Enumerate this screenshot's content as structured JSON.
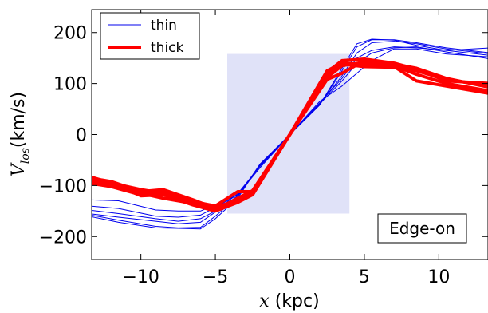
{
  "chart_data": {
    "type": "line",
    "xlabel_math": "x",
    "xlabel_unit": "(kpc)",
    "ylabel_math": "V",
    "ylabel_sub": "los",
    "ylabel_unit": "(km/s)",
    "xlim": [
      -13.3,
      13.3
    ],
    "ylim": [
      -245,
      245
    ],
    "x_ticks": [
      -10,
      -5,
      0,
      5,
      10
    ],
    "x_tick_labels": [
      "−10",
      "−5",
      "0",
      "5",
      "10"
    ],
    "y_ticks": [
      -200,
      -100,
      0,
      100,
      200
    ],
    "y_tick_labels": [
      "−200",
      "−100",
      "0",
      "100",
      "200"
    ],
    "shaded_region": {
      "x": [
        -4.2,
        4.0
      ],
      "y": [
        -155,
        158
      ],
      "color": "#e0e2f8"
    },
    "legend": {
      "placement": "top-left",
      "entries": [
        {
          "label": "thin",
          "color": "#0000ee"
        },
        {
          "label": "thick",
          "color": "#ff0000"
        }
      ]
    },
    "annotation": "Edge-on",
    "series": [
      {
        "name": "thin",
        "color": "#0000ee",
        "x": [
          -13.5,
          -11.5,
          -9,
          -7.5,
          -6,
          -5,
          -3.5,
          -2,
          0,
          2,
          3.5,
          4.5,
          5.5,
          7,
          8.5,
          10.5,
          13.5
        ],
        "y": [
          -128,
          -130,
          -148,
          -150,
          -150,
          -138,
          -118,
          -65,
          0,
          65,
          95,
          120,
          145,
          168,
          168,
          158,
          152
        ]
      },
      {
        "name": "thin",
        "color": "#0000ee",
        "x": [
          -13.5,
          -11.5,
          -9,
          -7.5,
          -6,
          -5,
          -3.5,
          -2,
          0,
          2,
          3.5,
          4.5,
          5.5,
          7,
          8.5,
          10.5,
          13.5
        ],
        "y": [
          -140,
          -145,
          -160,
          -162,
          -158,
          -143,
          -118,
          -62,
          0,
          62,
          110,
          150,
          165,
          172,
          170,
          165,
          155
        ]
      },
      {
        "name": "thin",
        "color": "#0000ee",
        "x": [
          -13.5,
          -11.5,
          -9,
          -7.5,
          -6,
          -5,
          -3.5,
          -2,
          0,
          2,
          3.5,
          4.5,
          5.5,
          7,
          8.5,
          10.5,
          13.5
        ],
        "y": [
          -155,
          -162,
          -170,
          -175,
          -172,
          -152,
          -120,
          -60,
          0,
          60,
          115,
          160,
          180,
          183,
          178,
          168,
          158
        ]
      },
      {
        "name": "thin",
        "color": "#0000ee",
        "x": [
          -13.5,
          -11.5,
          -9,
          -7.5,
          -6,
          -5,
          -3.5,
          -2,
          0,
          2,
          3.5,
          4.5,
          5.5,
          7,
          8.5,
          10.5,
          13.5
        ],
        "y": [
          -157,
          -168,
          -180,
          -183,
          -182,
          -160,
          -122,
          -58,
          0,
          58,
          125,
          172,
          186,
          186,
          180,
          170,
          160
        ]
      },
      {
        "name": "thin",
        "color": "#0000ee",
        "x": [
          -13.5,
          -11.5,
          -9,
          -7.5,
          -6,
          -5,
          -3.5,
          -2,
          0,
          2,
          3.5,
          4.5,
          5.5,
          7,
          8.5,
          10.5,
          13.5
        ],
        "y": [
          -160,
          -172,
          -183,
          -184,
          -185,
          -165,
          -125,
          -58,
          0,
          58,
          130,
          178,
          187,
          185,
          175,
          165,
          170
        ]
      },
      {
        "name": "thin",
        "color": "#0000ee",
        "x": [
          -13.5,
          -11.5,
          -9,
          -7.5,
          -6,
          -5,
          -3.5,
          -2,
          0,
          2,
          3.5,
          4.5,
          5.5,
          7,
          8.5,
          10.5,
          13.5
        ],
        "y": [
          -148,
          -155,
          -165,
          -170,
          -165,
          -150,
          -116,
          -62,
          0,
          60,
          105,
          140,
          160,
          170,
          172,
          162,
          148
        ]
      },
      {
        "name": "thick",
        "color": "#ff0000",
        "x": [
          -13.5,
          -12,
          -10,
          -8.5,
          -6.5,
          -5,
          -3.5,
          -2.5,
          0,
          2.5,
          3.5,
          5,
          7,
          8.5,
          10.5,
          13.5
        ],
        "y": [
          -85,
          -92,
          -112,
          -108,
          -128,
          -145,
          -128,
          -110,
          0,
          125,
          140,
          138,
          138,
          130,
          110,
          92
        ]
      },
      {
        "name": "thick",
        "color": "#ff0000",
        "x": [
          -13.5,
          -12,
          -10,
          -8.5,
          -6.5,
          -5,
          -3.5,
          -2.5,
          0,
          2.5,
          3.5,
          5,
          7,
          8.5,
          10.5,
          13.5
        ],
        "y": [
          -90,
          -95,
          -120,
          -118,
          -138,
          -150,
          -133,
          -118,
          0,
          112,
          135,
          142,
          135,
          118,
          100,
          85
        ]
      },
      {
        "name": "thick",
        "color": "#ff0000",
        "x": [
          -13.5,
          -12,
          -10,
          -8.5,
          -6.5,
          -5,
          -3.5,
          -2.5,
          0,
          2.5,
          3.5,
          5,
          7,
          8.5,
          10.5,
          13.5
        ],
        "y": [
          -95,
          -102,
          -118,
          -112,
          -130,
          -142,
          -130,
          -115,
          0,
          108,
          120,
          145,
          133,
          105,
          95,
          80
        ]
      },
      {
        "name": "thick",
        "color": "#ff0000",
        "x": [
          -13.5,
          -12,
          -10,
          -8.5,
          -6.5,
          -5,
          -3.5,
          -2.5,
          0,
          2.5,
          3.5,
          5,
          7,
          8.5,
          10.5,
          13.5
        ],
        "y": [
          -88,
          -98,
          -115,
          -125,
          -135,
          -148,
          -125,
          -110,
          0,
          118,
          138,
          133,
          132,
          125,
          108,
          95
        ]
      },
      {
        "name": "thick",
        "color": "#ff0000",
        "x": [
          -13.5,
          -12,
          -10,
          -8.5,
          -6.5,
          -5,
          -3.5,
          -2.5,
          0,
          2.5,
          3.5,
          5,
          7,
          8.5,
          10.5,
          13.5
        ],
        "y": [
          -82,
          -95,
          -108,
          -115,
          -132,
          -140,
          -112,
          -112,
          0,
          122,
          145,
          148,
          140,
          128,
          105,
          100
        ]
      }
    ]
  }
}
